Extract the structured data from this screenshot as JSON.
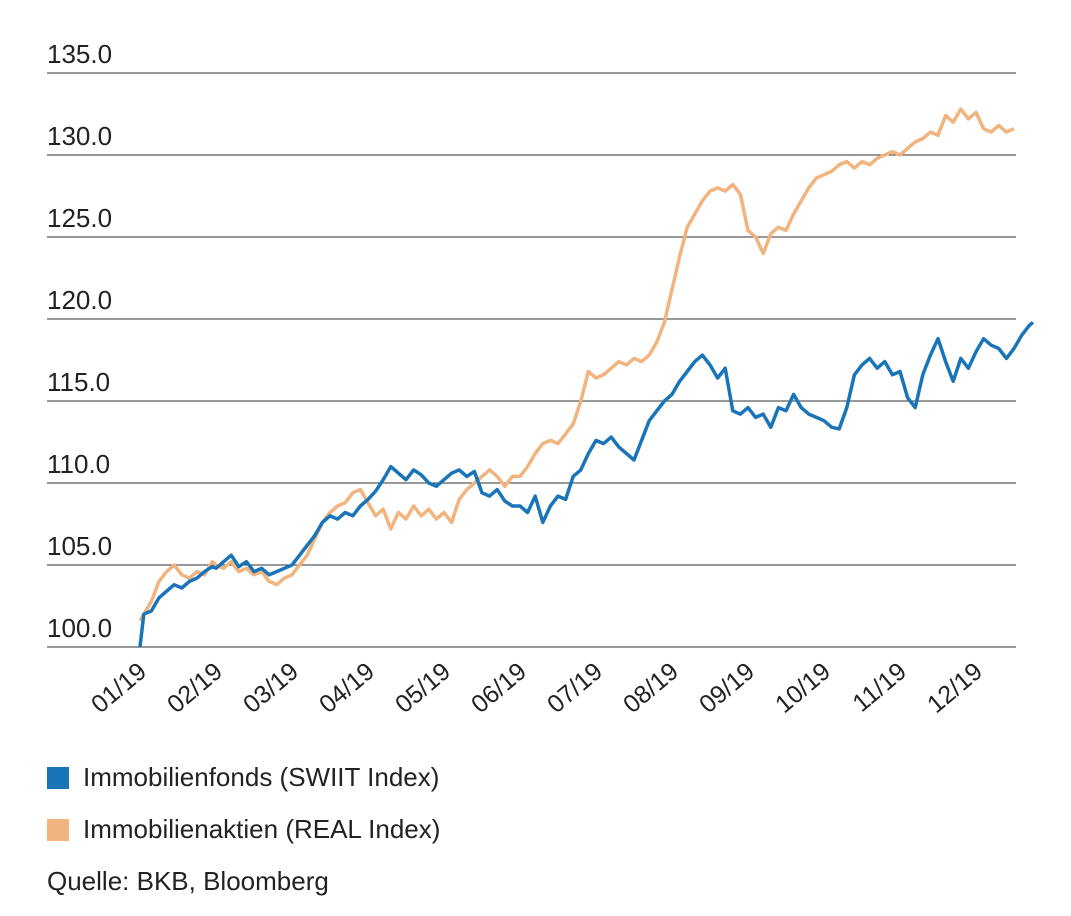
{
  "chart_data": {
    "type": "line",
    "title": "",
    "xlabel": "",
    "ylabel": "",
    "ylim": [
      100,
      135
    ],
    "yticks": [
      "135.0",
      "130.0",
      "125.0",
      "120.0",
      "115.0",
      "110.0",
      "105.0",
      "100.0"
    ],
    "ytick_values": [
      135,
      130,
      125,
      120,
      115,
      110,
      105,
      100
    ],
    "xticks": [
      "01/19",
      "02/19",
      "03/19",
      "04/19",
      "05/19",
      "06/19",
      "07/19",
      "08/19",
      "09/19",
      "10/19",
      "11/19",
      "12/19"
    ],
    "grid": "horizontal",
    "legend_position": "bottom",
    "series": [
      {
        "name": "Immobilienfonds (SWIIT Index)",
        "color": "#1a75b8",
        "values": [
          [
            0.0,
            100.0
          ],
          [
            0.05,
            102.0
          ],
          [
            0.15,
            102.2
          ],
          [
            0.25,
            103.0
          ],
          [
            0.35,
            103.4
          ],
          [
            0.45,
            103.8
          ],
          [
            0.55,
            103.6
          ],
          [
            0.65,
            104.0
          ],
          [
            0.75,
            104.2
          ],
          [
            0.85,
            104.6
          ],
          [
            0.95,
            104.9
          ],
          [
            1.0,
            104.8
          ],
          [
            1.1,
            105.2
          ],
          [
            1.2,
            105.6
          ],
          [
            1.3,
            104.9
          ],
          [
            1.4,
            105.2
          ],
          [
            1.5,
            104.6
          ],
          [
            1.6,
            104.8
          ],
          [
            1.7,
            104.4
          ],
          [
            1.8,
            104.6
          ],
          [
            1.9,
            104.8
          ],
          [
            2.0,
            105.0
          ],
          [
            2.1,
            105.6
          ],
          [
            2.2,
            106.2
          ],
          [
            2.3,
            106.8
          ],
          [
            2.4,
            107.6
          ],
          [
            2.5,
            108.0
          ],
          [
            2.6,
            107.8
          ],
          [
            2.7,
            108.2
          ],
          [
            2.8,
            108.0
          ],
          [
            2.9,
            108.6
          ],
          [
            3.0,
            109.0
          ],
          [
            3.1,
            109.5
          ],
          [
            3.2,
            110.2
          ],
          [
            3.3,
            111.0
          ],
          [
            3.4,
            110.6
          ],
          [
            3.5,
            110.2
          ],
          [
            3.6,
            110.8
          ],
          [
            3.7,
            110.5
          ],
          [
            3.8,
            110.0
          ],
          [
            3.9,
            109.8
          ],
          [
            4.0,
            110.2
          ],
          [
            4.1,
            110.6
          ],
          [
            4.2,
            110.8
          ],
          [
            4.3,
            110.4
          ],
          [
            4.4,
            110.7
          ],
          [
            4.5,
            109.4
          ],
          [
            4.6,
            109.2
          ],
          [
            4.7,
            109.6
          ],
          [
            4.8,
            108.9
          ],
          [
            4.9,
            108.6
          ],
          [
            5.0,
            108.6
          ],
          [
            5.1,
            108.2
          ],
          [
            5.2,
            109.2
          ],
          [
            5.3,
            107.6
          ],
          [
            5.4,
            108.6
          ],
          [
            5.5,
            109.2
          ],
          [
            5.6,
            109.0
          ],
          [
            5.7,
            110.4
          ],
          [
            5.8,
            110.8
          ],
          [
            5.9,
            111.8
          ],
          [
            6.0,
            112.6
          ],
          [
            6.1,
            112.4
          ],
          [
            6.2,
            112.8
          ],
          [
            6.3,
            112.2
          ],
          [
            6.4,
            111.8
          ],
          [
            6.5,
            111.4
          ],
          [
            6.6,
            112.6
          ],
          [
            6.7,
            113.8
          ],
          [
            6.8,
            114.4
          ],
          [
            6.9,
            115.0
          ],
          [
            7.0,
            115.4
          ],
          [
            7.1,
            116.2
          ],
          [
            7.2,
            116.8
          ],
          [
            7.3,
            117.4
          ],
          [
            7.4,
            117.8
          ],
          [
            7.5,
            117.2
          ],
          [
            7.6,
            116.4
          ],
          [
            7.7,
            117.0
          ],
          [
            7.8,
            114.4
          ],
          [
            7.9,
            114.2
          ],
          [
            8.0,
            114.6
          ],
          [
            8.1,
            114.0
          ],
          [
            8.2,
            114.2
          ],
          [
            8.3,
            113.4
          ],
          [
            8.4,
            114.6
          ],
          [
            8.5,
            114.4
          ],
          [
            8.6,
            115.4
          ],
          [
            8.7,
            114.6
          ],
          [
            8.8,
            114.2
          ],
          [
            8.9,
            114.0
          ],
          [
            9.0,
            113.8
          ],
          [
            9.1,
            113.4
          ],
          [
            9.2,
            113.3
          ],
          [
            9.3,
            114.6
          ],
          [
            9.4,
            116.6
          ],
          [
            9.5,
            117.2
          ],
          [
            9.6,
            117.6
          ],
          [
            9.7,
            117.0
          ],
          [
            9.8,
            117.4
          ],
          [
            9.9,
            116.6
          ],
          [
            10.0,
            116.8
          ],
          [
            10.1,
            115.2
          ],
          [
            10.2,
            114.6
          ],
          [
            10.3,
            116.6
          ],
          [
            10.4,
            117.8
          ],
          [
            10.5,
            118.8
          ],
          [
            10.6,
            117.4
          ],
          [
            10.7,
            116.2
          ],
          [
            10.8,
            117.6
          ],
          [
            10.9,
            117.0
          ],
          [
            11.0,
            118.0
          ],
          [
            11.1,
            118.8
          ],
          [
            11.2,
            118.4
          ],
          [
            11.3,
            118.2
          ],
          [
            11.4,
            117.6
          ],
          [
            11.5,
            118.2
          ],
          [
            11.6,
            119.0
          ],
          [
            11.7,
            119.6
          ],
          [
            11.75,
            119.8
          ]
        ]
      },
      {
        "name": "Immobilienaktien (REAL Index)",
        "color": "#f2b47e",
        "values": [
          [
            0.0,
            101.6
          ],
          [
            0.05,
            102.0
          ],
          [
            0.15,
            102.8
          ],
          [
            0.25,
            104.0
          ],
          [
            0.35,
            104.6
          ],
          [
            0.45,
            105.0
          ],
          [
            0.55,
            104.4
          ],
          [
            0.65,
            104.2
          ],
          [
            0.75,
            104.6
          ],
          [
            0.85,
            104.4
          ],
          [
            0.95,
            105.2
          ],
          [
            1.0,
            105.0
          ],
          [
            1.1,
            104.8
          ],
          [
            1.2,
            105.2
          ],
          [
            1.3,
            104.6
          ],
          [
            1.4,
            104.8
          ],
          [
            1.5,
            104.4
          ],
          [
            1.6,
            104.6
          ],
          [
            1.7,
            104.0
          ],
          [
            1.8,
            103.8
          ],
          [
            1.9,
            104.2
          ],
          [
            2.0,
            104.4
          ],
          [
            2.1,
            105.0
          ],
          [
            2.2,
            105.6
          ],
          [
            2.3,
            106.6
          ],
          [
            2.4,
            107.6
          ],
          [
            2.5,
            108.2
          ],
          [
            2.6,
            108.6
          ],
          [
            2.7,
            108.8
          ],
          [
            2.8,
            109.4
          ],
          [
            2.9,
            109.6
          ],
          [
            3.0,
            108.8
          ],
          [
            3.1,
            108.0
          ],
          [
            3.2,
            108.4
          ],
          [
            3.3,
            107.2
          ],
          [
            3.4,
            108.2
          ],
          [
            3.5,
            107.8
          ],
          [
            3.6,
            108.6
          ],
          [
            3.7,
            108.0
          ],
          [
            3.8,
            108.4
          ],
          [
            3.9,
            107.8
          ],
          [
            4.0,
            108.2
          ],
          [
            4.1,
            107.6
          ],
          [
            4.2,
            109.0
          ],
          [
            4.3,
            109.6
          ],
          [
            4.4,
            110.0
          ],
          [
            4.5,
            110.4
          ],
          [
            4.6,
            110.8
          ],
          [
            4.7,
            110.4
          ],
          [
            4.8,
            109.8
          ],
          [
            4.9,
            110.4
          ],
          [
            5.0,
            110.4
          ],
          [
            5.1,
            111.0
          ],
          [
            5.2,
            111.8
          ],
          [
            5.3,
            112.4
          ],
          [
            5.4,
            112.6
          ],
          [
            5.5,
            112.4
          ],
          [
            5.6,
            113.0
          ],
          [
            5.7,
            113.6
          ],
          [
            5.8,
            115.0
          ],
          [
            5.9,
            116.8
          ],
          [
            6.0,
            116.4
          ],
          [
            6.1,
            116.6
          ],
          [
            6.2,
            117.0
          ],
          [
            6.3,
            117.4
          ],
          [
            6.4,
            117.2
          ],
          [
            6.5,
            117.6
          ],
          [
            6.6,
            117.4
          ],
          [
            6.7,
            117.8
          ],
          [
            6.8,
            118.6
          ],
          [
            6.9,
            119.8
          ],
          [
            7.0,
            121.8
          ],
          [
            7.1,
            123.8
          ],
          [
            7.2,
            125.6
          ],
          [
            7.3,
            126.4
          ],
          [
            7.4,
            127.2
          ],
          [
            7.5,
            127.8
          ],
          [
            7.6,
            128.0
          ],
          [
            7.7,
            127.8
          ],
          [
            7.8,
            128.2
          ],
          [
            7.9,
            127.6
          ],
          [
            8.0,
            125.4
          ],
          [
            8.1,
            125.0
          ],
          [
            8.2,
            124.0
          ],
          [
            8.3,
            125.2
          ],
          [
            8.4,
            125.6
          ],
          [
            8.5,
            125.4
          ],
          [
            8.6,
            126.4
          ],
          [
            8.7,
            127.2
          ],
          [
            8.8,
            128.0
          ],
          [
            8.9,
            128.6
          ],
          [
            9.0,
            128.8
          ],
          [
            9.1,
            129.0
          ],
          [
            9.2,
            129.4
          ],
          [
            9.3,
            129.6
          ],
          [
            9.4,
            129.2
          ],
          [
            9.5,
            129.6
          ],
          [
            9.6,
            129.4
          ],
          [
            9.7,
            129.8
          ],
          [
            9.8,
            130.0
          ],
          [
            9.9,
            130.2
          ],
          [
            10.0,
            130.0
          ],
          [
            10.1,
            130.4
          ],
          [
            10.2,
            130.8
          ],
          [
            10.3,
            131.0
          ],
          [
            10.4,
            131.4
          ],
          [
            10.5,
            131.2
          ],
          [
            10.6,
            132.4
          ],
          [
            10.7,
            132.0
          ],
          [
            10.8,
            132.8
          ],
          [
            10.9,
            132.2
          ],
          [
            11.0,
            132.6
          ],
          [
            11.1,
            131.6
          ],
          [
            11.2,
            131.4
          ],
          [
            11.3,
            131.8
          ],
          [
            11.4,
            131.4
          ],
          [
            11.5,
            131.6
          ]
        ]
      }
    ]
  },
  "legend": [
    {
      "label": "Immobilienfonds (SWIIT Index)",
      "color": "#1a75b8"
    },
    {
      "label": "Immobilienaktien (REAL Index)",
      "color": "#f2b47e"
    }
  ],
  "source": "Quelle: BKB, Bloomberg"
}
